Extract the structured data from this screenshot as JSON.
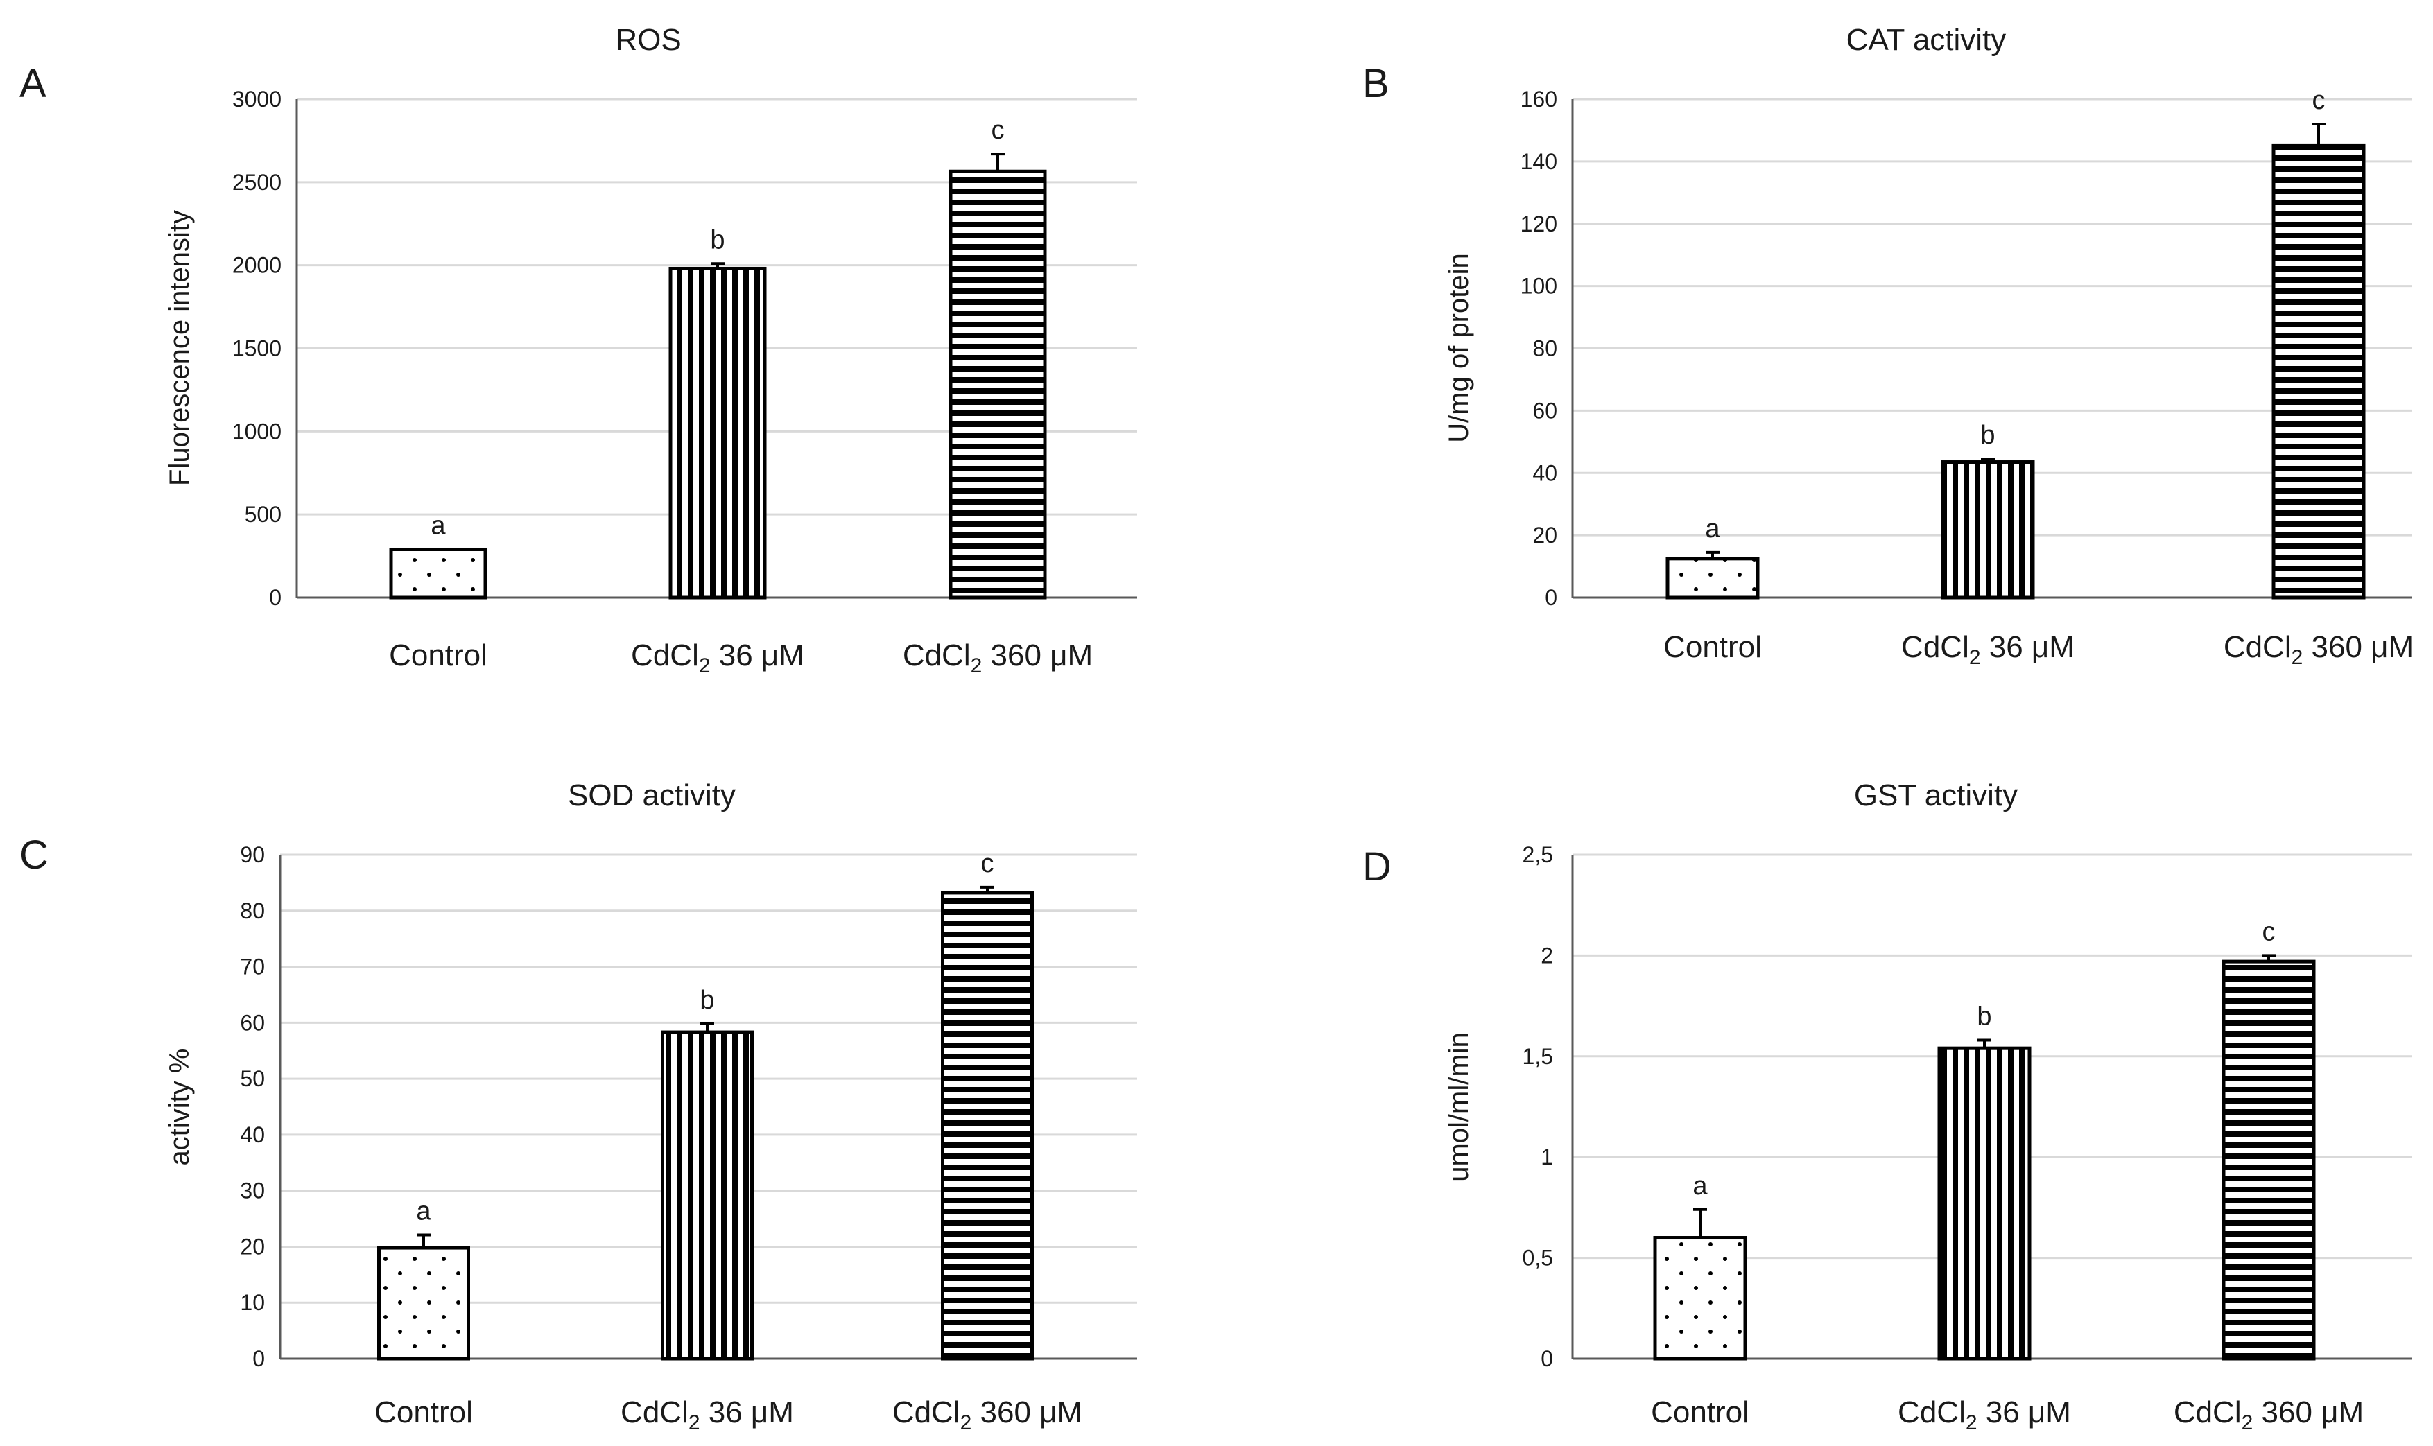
{
  "chart_data": [
    {
      "panel": "A",
      "type": "bar",
      "title": "ROS",
      "xlabel": "",
      "ylabel": "Fluorescence intensity",
      "ylim": [
        0,
        3000
      ],
      "yticks": [
        0,
        500,
        1000,
        1500,
        2000,
        2500,
        3000
      ],
      "ytick_labels": [
        "0",
        "500",
        "1000",
        "1500",
        "2000",
        "2500",
        "3000"
      ],
      "grid": true,
      "categories": [
        {
          "base": "Control",
          "sub": "",
          "suffix": ""
        },
        {
          "base": "CdCl",
          "sub": "2",
          "suffix": " 36 μM"
        },
        {
          "base": "CdCl",
          "sub": "2",
          "suffix": " 360 μM"
        }
      ],
      "patterns": [
        "dots",
        "vertical",
        "horizontal"
      ],
      "values": [
        290,
        1980,
        2565
      ],
      "errors": [
        0,
        30,
        105
      ],
      "significance": [
        "a",
        "b",
        "c"
      ]
    },
    {
      "panel": "B",
      "type": "bar",
      "title": "CAT activity",
      "xlabel": "",
      "ylabel": "U/mg of protein",
      "ylim": [
        0,
        160
      ],
      "yticks": [
        0,
        20,
        40,
        60,
        80,
        100,
        120,
        140,
        160
      ],
      "ytick_labels": [
        "0",
        "20",
        "40",
        "60",
        "80",
        "100",
        "120",
        "140",
        "160"
      ],
      "grid": true,
      "categories": [
        {
          "base": "Control",
          "sub": "",
          "suffix": ""
        },
        {
          "base": "CdCl",
          "sub": "2",
          "suffix": " 36 μM"
        },
        {
          "base": "CdCl",
          "sub": "2",
          "suffix": " 360 μM"
        }
      ],
      "patterns": [
        "dots",
        "vertical",
        "horizontal"
      ],
      "values": [
        12.5,
        43.5,
        145
      ],
      "errors": [
        2,
        1,
        7
      ],
      "significance": [
        "a",
        "b",
        "c"
      ]
    },
    {
      "panel": "C",
      "type": "bar",
      "title": "SOD activity",
      "xlabel": "",
      "ylabel": "activity  %",
      "ylim": [
        0,
        90
      ],
      "yticks": [
        0,
        10,
        20,
        30,
        40,
        50,
        60,
        70,
        80,
        90
      ],
      "ytick_labels": [
        "0",
        "10",
        "20",
        "30",
        "40",
        "50",
        "60",
        "70",
        "80",
        "90"
      ],
      "grid": true,
      "categories": [
        {
          "base": "Control",
          "sub": "",
          "suffix": ""
        },
        {
          "base": "CdCl",
          "sub": "2",
          "suffix": " 36 μM"
        },
        {
          "base": "CdCl",
          "sub": "2",
          "suffix": " 360 μM"
        }
      ],
      "patterns": [
        "dots",
        "vertical",
        "horizontal"
      ],
      "values": [
        19.8,
        58.3,
        83.2
      ],
      "errors": [
        2.3,
        1.5,
        1
      ],
      "significance": [
        "a",
        "b",
        "c"
      ]
    },
    {
      "panel": "D",
      "type": "bar",
      "title": "GST activity",
      "xlabel": "",
      "ylabel": "umol/ml/min",
      "ylim": [
        0,
        2.5
      ],
      "yticks": [
        0,
        0.5,
        1,
        1.5,
        2,
        2.5
      ],
      "ytick_labels": [
        "0",
        "0,5",
        "1",
        "1,5",
        "2",
        "2,5"
      ],
      "grid": true,
      "categories": [
        {
          "base": "Control",
          "sub": "",
          "suffix": ""
        },
        {
          "base": "CdCl",
          "sub": "2",
          "suffix": " 36 μM"
        },
        {
          "base": "CdCl",
          "sub": "2",
          "suffix": " 360 μM"
        }
      ],
      "patterns": [
        "dots",
        "vertical",
        "horizontal"
      ],
      "values": [
        0.6,
        1.54,
        1.97
      ],
      "errors": [
        0.14,
        0.04,
        0.03
      ],
      "significance": [
        "a",
        "b",
        "c"
      ]
    }
  ]
}
